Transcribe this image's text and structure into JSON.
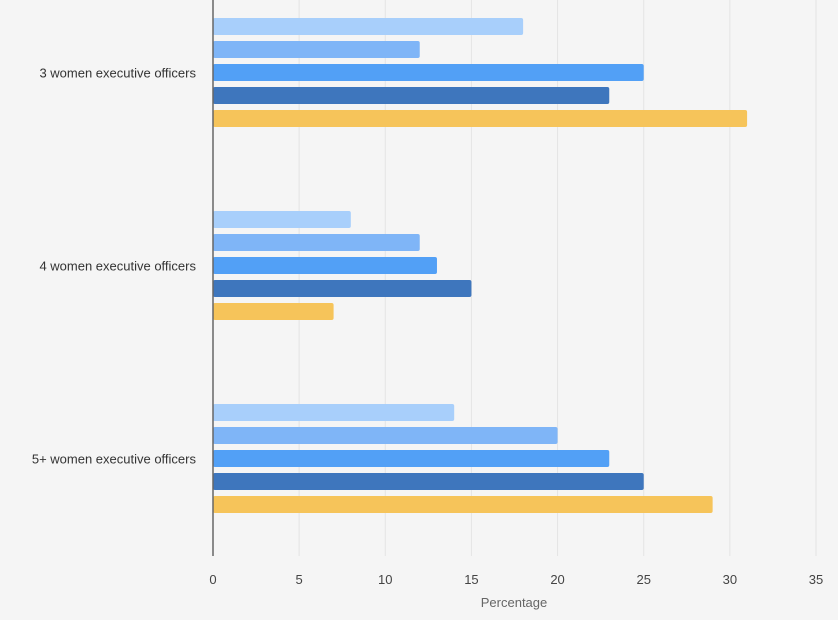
{
  "chart_data": {
    "type": "bar",
    "orientation": "horizontal",
    "title": "",
    "xlabel": "Percentage",
    "ylabel": "",
    "xlim": [
      0,
      35
    ],
    "xticks": [
      0,
      5,
      10,
      15,
      20,
      25,
      30,
      35
    ],
    "grid": true,
    "categories": [
      "3 women executive officers",
      "4 women executive officers",
      "5+ women executive officers"
    ],
    "series": [
      {
        "color": "#a8cffb",
        "values": [
          18,
          8,
          14
        ]
      },
      {
        "color": "#7fb5f7",
        "values": [
          12,
          12,
          20
        ]
      },
      {
        "color": "#52a0f6",
        "values": [
          25,
          13,
          23
        ]
      },
      {
        "color": "#3e76bd",
        "values": [
          23,
          15,
          25
        ]
      },
      {
        "color": "#f6c45a",
        "values": [
          31,
          7,
          29
        ]
      }
    ]
  }
}
